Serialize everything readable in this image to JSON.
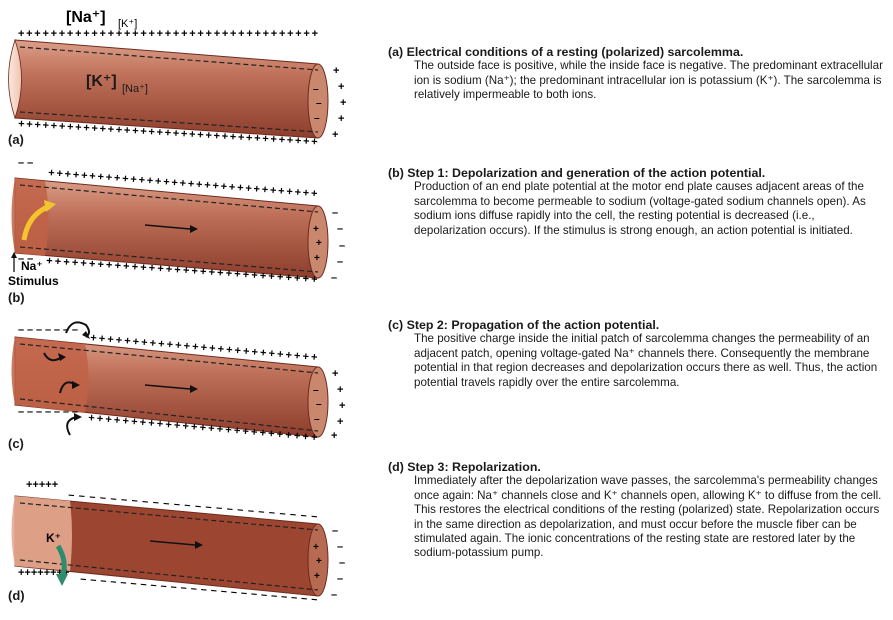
{
  "panels": [
    {
      "id": "a",
      "letter": "(a)",
      "heading": "(a)  Electrical conditions of a resting (polarized) sarcolemma.",
      "body": "The outside face is positive, while the inside face is negative. The predominant extracellular ion is sodium (Na⁺); the predominant intracellular ion is potassium (K⁺). The sarcolemma is relatively impermeable to both ions.",
      "labels": {
        "outside_major": "[Na⁺]",
        "outside_minor": "[K⁺]",
        "inside_major": "[K⁺]",
        "inside_minor": "[Na⁺]"
      }
    },
    {
      "id": "b",
      "letter": "(b)",
      "heading": "(b)  Step 1: Depolarization and generation of the action potential.",
      "body": "Production of an end plate potential at the motor end plate causes adjacent areas of the sarcolemma to become permeable to sodium (voltage-gated sodium channels open). As sodium ions diffuse rapidly into the cell, the resting potential is decreased (i.e., depolarization occurs). If the stimulus is strong enough, an action potential is initiated.",
      "labels": {
        "ion": "Na⁺",
        "stimulus": "Stimulus"
      }
    },
    {
      "id": "c",
      "letter": "(c)",
      "heading": "(c)  Step 2: Propagation of the action potential.",
      "body": "The positive charge inside the initial patch of sarcolemma changes the permeability of an adjacent patch, opening voltage-gated Na⁺ channels there. Consequently the membrane potential in that region decreases and depolarization occurs there as well. Thus, the action potential travels rapidly over the entire sarcolemma."
    },
    {
      "id": "d",
      "letter": "(d)",
      "heading": "(d)  Step 3: Repolarization.",
      "body": "Immediately after the depolarization wave passes, the sarcolemma's permeability changes once again: Na⁺ channels close and K⁺ channels open, allowing K⁺ to diffuse from the cell. This restores the electrical conditions of the resting (polarized) state. Repolarization occurs in the same direction as depolarization, and must occur before the muscle fiber can be stimulated again. The ionic concentrations of the resting state are restored later by the sodium-potassium pump.",
      "labels": {
        "ion": "K⁺"
      }
    }
  ],
  "colors": {
    "fiber": "#b9644e",
    "fiber_dark": "#8c3d2c",
    "fiber_light": "#e7b09c",
    "cut_face": "#f6dccf",
    "na_arrow": "#f4c430",
    "k_arrow": "#2e8b6e"
  },
  "symbols": {
    "plus": "+",
    "minus": "–"
  }
}
